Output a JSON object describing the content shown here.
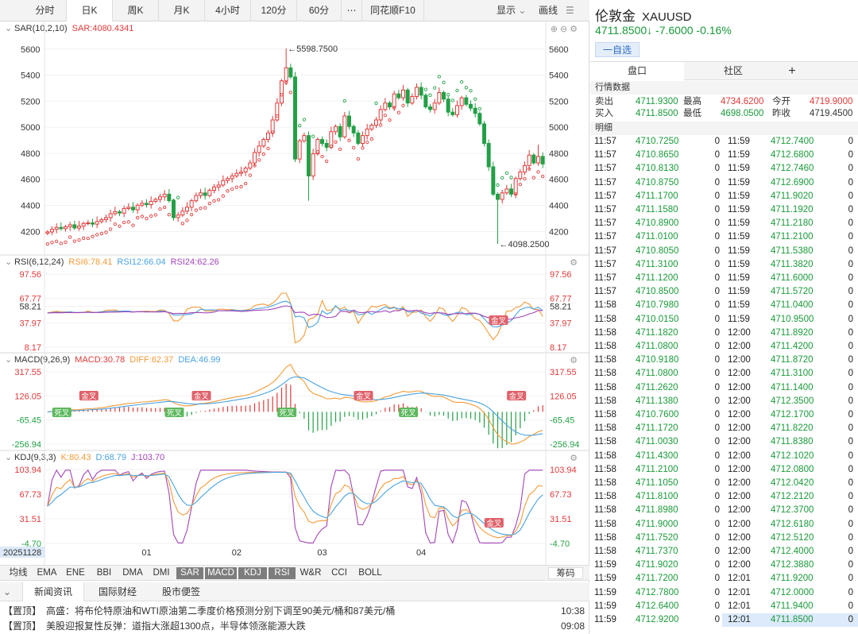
{
  "toolbar": {
    "tabs": [
      "分时",
      "日K",
      "周K",
      "月K",
      "4小时",
      "120分",
      "60分",
      "⋯",
      "同花顺F10"
    ],
    "active_tab": "日K",
    "display_label": "显示",
    "draw_label": "画线"
  },
  "sar_panel": {
    "title": "SAR(10,2,10)",
    "value_label": "SAR:4080.4341",
    "high_label": "5598.7500",
    "low_label": "4098.2500",
    "y_ticks": [
      "5600",
      "5400",
      "5200",
      "5000",
      "4800",
      "4600",
      "4400",
      "4200"
    ]
  },
  "rsi_panel": {
    "title": "RSI(6,12,24)",
    "rsi6": "RSI6:78.41",
    "rsi12": "RSI12:66.04",
    "rsi24": "RSI24:62.26",
    "y_ticks": [
      "97.56",
      "67.77",
      "58.21",
      "37.97",
      "8.17"
    ],
    "marker": "金叉"
  },
  "macd_panel": {
    "title": "MACD(9,26,9)",
    "macd": "MACD:30.78",
    "diff": "DIFF:62.37",
    "dea": "DEA:46.99",
    "y_ticks": [
      "317.55",
      "126.05",
      "-65.45",
      "-256.94"
    ],
    "markers": [
      "金叉",
      "死叉",
      "金叉",
      "死叉",
      "金叉",
      "死叉",
      "金叉"
    ]
  },
  "kdj_panel": {
    "title": "KDJ(9,3,3)",
    "k": "K:80.43",
    "d": "D:68.79",
    "j": "J:103.70",
    "y_ticks": [
      "103.94",
      "67.73",
      "31.51",
      "-4.70"
    ],
    "marker": "金叉"
  },
  "x_axis": {
    "start_date": "20251128",
    "months": [
      "01",
      "02",
      "03",
      "04"
    ]
  },
  "indicators": {
    "items": [
      "均线",
      "EMA",
      "ENE",
      "BBI",
      "DMA",
      "DMI",
      "SAR",
      "MACD",
      "KDJ",
      "RSI",
      "W&R",
      "CCI",
      "BOLL"
    ],
    "active": [
      "SAR",
      "MACD",
      "KDJ",
      "RSI"
    ],
    "chips_label": "筹码"
  },
  "news": {
    "tabs": [
      "新闻资讯",
      "国际财经",
      "股市便签"
    ],
    "items": [
      {
        "tag": "【置顶】",
        "text": "高盛：将布伦特原油和WTI原油第二季度价格预测分别下调至90美元/桶和87美元/桶",
        "time": "10:38"
      },
      {
        "tag": "【置顶】",
        "text": "美股迎报复性反弹：道指大涨超1300点，半导体领涨能源大跌",
        "time": "09:08"
      }
    ]
  },
  "quote": {
    "name": "伦敦金",
    "code": "XAUUSD",
    "price": "4711.8500",
    "arrow": "↓",
    "change": "-7.6000",
    "pct": "-0.16%",
    "fav_label": "一自选",
    "tabs": [
      "盘口",
      "社区"
    ],
    "add_icon": "plus-icon",
    "section_quote": "行情数据",
    "section_detail": "明细",
    "rows": [
      {
        "l1": "卖出",
        "v1": "4711.9300",
        "l2": "最高",
        "v2": "4734.6200",
        "l3": "今开",
        "v3": "4719.9000"
      },
      {
        "l1": "买入",
        "v1": "4711.8500",
        "l2": "最低",
        "v2": "4698.0500",
        "l3": "昨收",
        "v3": "4719.4500"
      }
    ]
  },
  "ticks_left": [
    [
      "11:57",
      "4710.7250",
      "0"
    ],
    [
      "11:57",
      "4710.8650",
      "0"
    ],
    [
      "11:57",
      "4710.8130",
      "0"
    ],
    [
      "11:57",
      "4710.8750",
      "0"
    ],
    [
      "11:57",
      "4711.1700",
      "0"
    ],
    [
      "11:57",
      "4711.1580",
      "0"
    ],
    [
      "11:57",
      "4710.8900",
      "0"
    ],
    [
      "11:57",
      "4711.0100",
      "0"
    ],
    [
      "11:57",
      "4710.8050",
      "0"
    ],
    [
      "11:57",
      "4711.3100",
      "0"
    ],
    [
      "11:57",
      "4711.1200",
      "0"
    ],
    [
      "11:57",
      "4710.8500",
      "0"
    ],
    [
      "11:58",
      "4710.7980",
      "0"
    ],
    [
      "11:58",
      "4710.0150",
      "0"
    ],
    [
      "11:58",
      "4711.1820",
      "0"
    ],
    [
      "11:58",
      "4711.0800",
      "0"
    ],
    [
      "11:58",
      "4710.9180",
      "0"
    ],
    [
      "11:58",
      "4711.0800",
      "0"
    ],
    [
      "11:58",
      "4711.2620",
      "0"
    ],
    [
      "11:58",
      "4711.1380",
      "0"
    ],
    [
      "11:58",
      "4710.7600",
      "0"
    ],
    [
      "11:58",
      "4711.1720",
      "0"
    ],
    [
      "11:58",
      "4711.0030",
      "0"
    ],
    [
      "11:58",
      "4711.4300",
      "0"
    ],
    [
      "11:58",
      "4711.2100",
      "0"
    ],
    [
      "11:58",
      "4711.1050",
      "0"
    ],
    [
      "11:58",
      "4711.8100",
      "0"
    ],
    [
      "11:58",
      "4711.8980",
      "0"
    ],
    [
      "11:58",
      "4711.9000",
      "0"
    ],
    [
      "11:58",
      "4711.7520",
      "0"
    ],
    [
      "11:58",
      "4711.7370",
      "0"
    ],
    [
      "11:59",
      "4711.9020",
      "0"
    ],
    [
      "11:59",
      "4711.7200",
      "0"
    ],
    [
      "11:59",
      "4712.7800",
      "0"
    ],
    [
      "11:59",
      "4712.6400",
      "0"
    ],
    [
      "11:59",
      "4712.9200",
      "0"
    ]
  ],
  "ticks_right": [
    [
      "11:59",
      "4712.7400",
      "0"
    ],
    [
      "11:59",
      "4712.6800",
      "0"
    ],
    [
      "11:59",
      "4712.7460",
      "0"
    ],
    [
      "11:59",
      "4712.6900",
      "0"
    ],
    [
      "11:59",
      "4711.9020",
      "0"
    ],
    [
      "11:59",
      "4711.1920",
      "0"
    ],
    [
      "11:59",
      "4711.2180",
      "0"
    ],
    [
      "11:59",
      "4711.2100",
      "0"
    ],
    [
      "11:59",
      "4711.5380",
      "0"
    ],
    [
      "11:59",
      "4711.3820",
      "0"
    ],
    [
      "11:59",
      "4711.6000",
      "0"
    ],
    [
      "11:59",
      "4711.5720",
      "0"
    ],
    [
      "11:59",
      "4711.0400",
      "0"
    ],
    [
      "11:59",
      "4710.9500",
      "0"
    ],
    [
      "12:00",
      "4711.8920",
      "0"
    ],
    [
      "12:00",
      "4711.4200",
      "0"
    ],
    [
      "12:00",
      "4711.8720",
      "0"
    ],
    [
      "12:00",
      "4711.3100",
      "0"
    ],
    [
      "12:00",
      "4711.1400",
      "0"
    ],
    [
      "12:00",
      "4712.3500",
      "0"
    ],
    [
      "12:00",
      "4712.1700",
      "0"
    ],
    [
      "12:00",
      "4711.8220",
      "0"
    ],
    [
      "12:00",
      "4711.8380",
      "0"
    ],
    [
      "12:00",
      "4712.1020",
      "0"
    ],
    [
      "12:00",
      "4712.0800",
      "0"
    ],
    [
      "12:00",
      "4712.0420",
      "0"
    ],
    [
      "12:00",
      "4712.2120",
      "0"
    ],
    [
      "12:00",
      "4712.3700",
      "0"
    ],
    [
      "12:00",
      "4712.6180",
      "0"
    ],
    [
      "12:00",
      "4712.5120",
      "0"
    ],
    [
      "12:00",
      "4712.4000",
      "0"
    ],
    [
      "12:00",
      "4712.3880",
      "0"
    ],
    [
      "12:01",
      "4711.9200",
      "0"
    ],
    [
      "12:01",
      "4712.0000",
      "0"
    ],
    [
      "12:01",
      "4711.9400",
      "0"
    ],
    [
      "12:01",
      "4711.8500",
      "0"
    ]
  ],
  "colors": {
    "up": "#e03a3a",
    "down": "#22a046",
    "rsi6": "#f29b38",
    "rsi12": "#4aa3e0",
    "rsi24": "#a245b8",
    "sar_up": "#e03a3a",
    "sar_down": "#22a046"
  },
  "chart_data": {
    "type": "candlestick",
    "x_start": "20251128",
    "ylim": [
      4098.25,
      5598.75
    ],
    "closes": [
      4190,
      4210,
      4225,
      4215,
      4230,
      4245,
      4220,
      4235,
      4255,
      4260,
      4250,
      4270,
      4285,
      4300,
      4330,
      4345,
      4335,
      4370,
      4380,
      4360,
      4395,
      4410,
      4400,
      4425,
      4440,
      4460,
      4480,
      4430,
      4300,
      4320,
      4350,
      4380,
      4430,
      4470,
      4490,
      4470,
      4510,
      4535,
      4550,
      4585,
      4600,
      4620,
      4640,
      4650,
      4680,
      4720,
      4800,
      4850,
      4900,
      4950,
      5050,
      5180,
      5350,
      5450,
      5380,
      4750,
      4890,
      4930,
      4620,
      4790,
      4900,
      4870,
      4840,
      4960,
      5000,
      4920,
      5080,
      5000,
      4950,
      4870,
      4930,
      4980,
      5010,
      5050,
      5130,
      5180,
      5150,
      5250,
      5220,
      5280,
      5180,
      5230,
      5300,
      5240,
      5150,
      5130,
      5180,
      5260,
      5210,
      5110,
      5090,
      5160,
      5220,
      5170,
      5140,
      5100,
      5020,
      4870,
      4690,
      4480,
      4440,
      4490,
      4520,
      4480,
      4600,
      4650,
      4700,
      4780,
      4720,
      4770,
      4711.85
    ],
    "volume_note": ""
  }
}
